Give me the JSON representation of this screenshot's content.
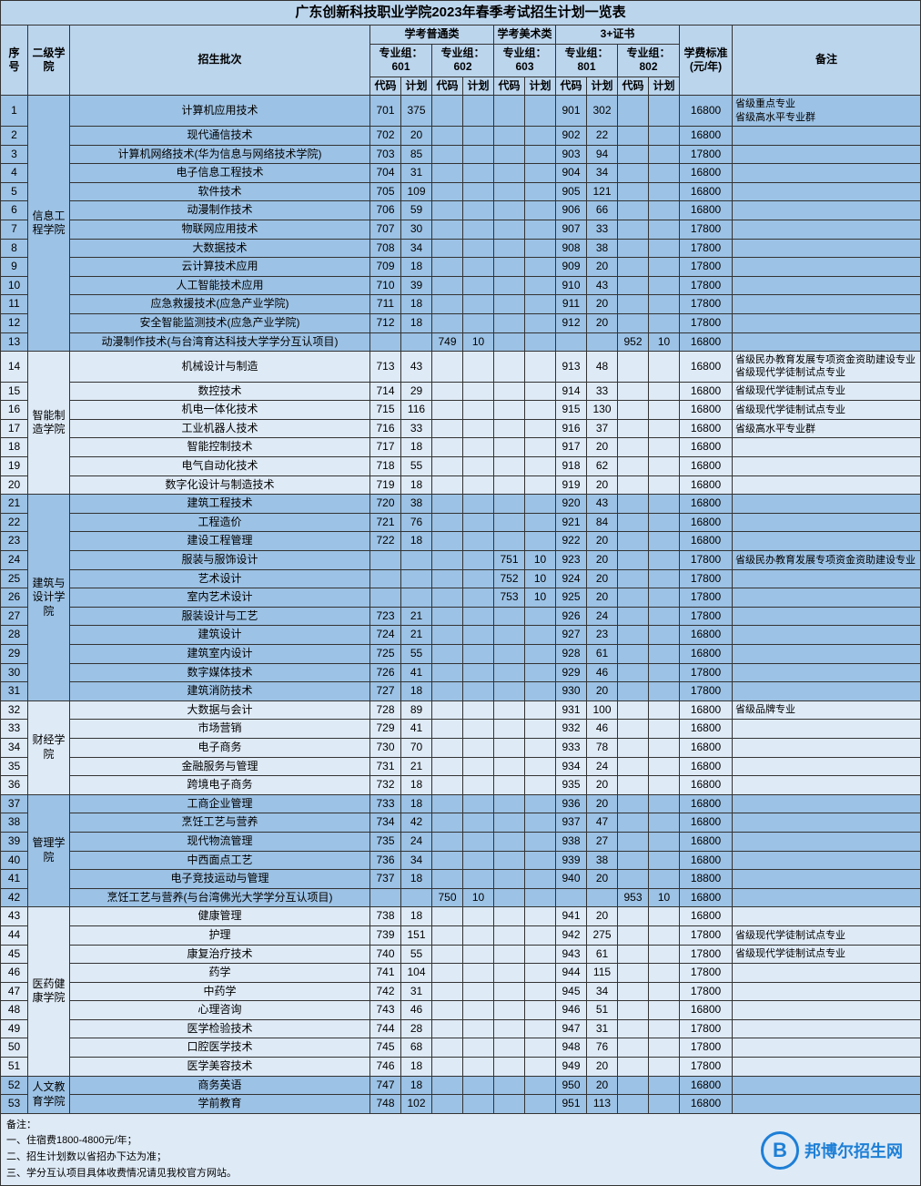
{
  "title": "广东创新科技职业学院2023年春季考试招生计划一览表",
  "colors": {
    "header_bg": "#bbd5ed",
    "dark_bg": "#9cc2e5",
    "light_bg": "#deeaf6",
    "border": "#333333",
    "logo": "#1e7fd6"
  },
  "header": {
    "seq": "序号",
    "college": "二级学院",
    "major": "招生批次",
    "cat_normal": "学考普通类",
    "cat_art": "学考美术类",
    "cat_3cert": "3+证书",
    "grp601": "专业组：601",
    "grp602": "专业组：602",
    "grp603": "专业组：603",
    "grp801": "专业组：801",
    "grp802": "专业组：802",
    "code": "代码",
    "plan": "计划",
    "fee": "学费标准(元/年)",
    "remark": "备注"
  },
  "colleges": [
    {
      "name": "信息工程学院",
      "shade": "dark",
      "rows": [
        {
          "n": 1,
          "major": "计算机应用技术",
          "c601": "701",
          "p601": "375",
          "c801": "901",
          "p801": "302",
          "fee": "16800",
          "remark": "省级重点专业\n省级高水平专业群"
        },
        {
          "n": 2,
          "major": "现代通信技术",
          "c601": "702",
          "p601": "20",
          "c801": "902",
          "p801": "22",
          "fee": "16800"
        },
        {
          "n": 3,
          "major": "计算机网络技术(华为信息与网络技术学院)",
          "c601": "703",
          "p601": "85",
          "c801": "903",
          "p801": "94",
          "fee": "17800"
        },
        {
          "n": 4,
          "major": "电子信息工程技术",
          "c601": "704",
          "p601": "31",
          "c801": "904",
          "p801": "34",
          "fee": "16800"
        },
        {
          "n": 5,
          "major": "软件技术",
          "c601": "705",
          "p601": "109",
          "c801": "905",
          "p801": "121",
          "fee": "16800"
        },
        {
          "n": 6,
          "major": "动漫制作技术",
          "c601": "706",
          "p601": "59",
          "c801": "906",
          "p801": "66",
          "fee": "16800"
        },
        {
          "n": 7,
          "major": "物联网应用技术",
          "c601": "707",
          "p601": "30",
          "c801": "907",
          "p801": "33",
          "fee": "17800"
        },
        {
          "n": 8,
          "major": "大数据技术",
          "c601": "708",
          "p601": "34",
          "c801": "908",
          "p801": "38",
          "fee": "17800"
        },
        {
          "n": 9,
          "major": "云计算技术应用",
          "c601": "709",
          "p601": "18",
          "c801": "909",
          "p801": "20",
          "fee": "17800"
        },
        {
          "n": 10,
          "major": "人工智能技术应用",
          "c601": "710",
          "p601": "39",
          "c801": "910",
          "p801": "43",
          "fee": "17800"
        },
        {
          "n": 11,
          "major": "应急救援技术(应急产业学院)",
          "c601": "711",
          "p601": "18",
          "c801": "911",
          "p801": "20",
          "fee": "17800"
        },
        {
          "n": 12,
          "major": "安全智能监测技术(应急产业学院)",
          "c601": "712",
          "p601": "18",
          "c801": "912",
          "p801": "20",
          "fee": "17800"
        },
        {
          "n": 13,
          "major": "动漫制作技术(与台湾育达科技大学学分互认项目)",
          "c602": "749",
          "p602": "10",
          "c802": "952",
          "p802": "10",
          "fee": "16800"
        }
      ]
    },
    {
      "name": "智能制造学院",
      "shade": "light",
      "rows": [
        {
          "n": 14,
          "major": "机械设计与制造",
          "c601": "713",
          "p601": "43",
          "c801": "913",
          "p801": "48",
          "fee": "16800",
          "remark": "省级民办教育发展专项资金资助建设专业\n省级现代学徒制试点专业"
        },
        {
          "n": 15,
          "major": "数控技术",
          "c601": "714",
          "p601": "29",
          "c801": "914",
          "p801": "33",
          "fee": "16800",
          "remark": "省级现代学徒制试点专业"
        },
        {
          "n": 16,
          "major": "机电一体化技术",
          "c601": "715",
          "p601": "116",
          "c801": "915",
          "p801": "130",
          "fee": "16800",
          "remark": "省级现代学徒制试点专业"
        },
        {
          "n": 17,
          "major": "工业机器人技术",
          "c601": "716",
          "p601": "33",
          "c801": "916",
          "p801": "37",
          "fee": "16800",
          "remark": "省级高水平专业群"
        },
        {
          "n": 18,
          "major": "智能控制技术",
          "c601": "717",
          "p601": "18",
          "c801": "917",
          "p801": "20",
          "fee": "16800"
        },
        {
          "n": 19,
          "major": "电气自动化技术",
          "c601": "718",
          "p601": "55",
          "c801": "918",
          "p801": "62",
          "fee": "16800"
        },
        {
          "n": 20,
          "major": "数字化设计与制造技术",
          "c601": "719",
          "p601": "18",
          "c801": "919",
          "p801": "20",
          "fee": "16800"
        }
      ]
    },
    {
      "name": "建筑与设计学院",
      "shade": "dark",
      "rows": [
        {
          "n": 21,
          "major": "建筑工程技术",
          "c601": "720",
          "p601": "38",
          "c801": "920",
          "p801": "43",
          "fee": "16800"
        },
        {
          "n": 22,
          "major": "工程造价",
          "c601": "721",
          "p601": "76",
          "c801": "921",
          "p801": "84",
          "fee": "16800"
        },
        {
          "n": 23,
          "major": "建设工程管理",
          "c601": "722",
          "p601": "18",
          "c801": "922",
          "p801": "20",
          "fee": "16800"
        },
        {
          "n": 24,
          "major": "服装与服饰设计",
          "c603": "751",
          "p603": "10",
          "c801": "923",
          "p801": "20",
          "fee": "17800",
          "remark": "省级民办教育发展专项资金资助建设专业"
        },
        {
          "n": 25,
          "major": "艺术设计",
          "c603": "752",
          "p603": "10",
          "c801": "924",
          "p801": "20",
          "fee": "17800"
        },
        {
          "n": 26,
          "major": "室内艺术设计",
          "c603": "753",
          "p603": "10",
          "c801": "925",
          "p801": "20",
          "fee": "17800"
        },
        {
          "n": 27,
          "major": "服装设计与工艺",
          "c601": "723",
          "p601": "21",
          "c801": "926",
          "p801": "24",
          "fee": "17800"
        },
        {
          "n": 28,
          "major": "建筑设计",
          "c601": "724",
          "p601": "21",
          "c801": "927",
          "p801": "23",
          "fee": "16800"
        },
        {
          "n": 29,
          "major": "建筑室内设计",
          "c601": "725",
          "p601": "55",
          "c801": "928",
          "p801": "61",
          "fee": "16800"
        },
        {
          "n": 30,
          "major": "数字媒体技术",
          "c601": "726",
          "p601": "41",
          "c801": "929",
          "p801": "46",
          "fee": "17800"
        },
        {
          "n": 31,
          "major": "建筑消防技术",
          "c601": "727",
          "p601": "18",
          "c801": "930",
          "p801": "20",
          "fee": "17800"
        }
      ]
    },
    {
      "name": "财经学院",
      "shade": "light",
      "rows": [
        {
          "n": 32,
          "major": "大数据与会计",
          "c601": "728",
          "p601": "89",
          "c801": "931",
          "p801": "100",
          "fee": "16800",
          "remark": "省级品牌专业"
        },
        {
          "n": 33,
          "major": "市场营销",
          "c601": "729",
          "p601": "41",
          "c801": "932",
          "p801": "46",
          "fee": "16800"
        },
        {
          "n": 34,
          "major": "电子商务",
          "c601": "730",
          "p601": "70",
          "c801": "933",
          "p801": "78",
          "fee": "16800"
        },
        {
          "n": 35,
          "major": "金融服务与管理",
          "c601": "731",
          "p601": "21",
          "c801": "934",
          "p801": "24",
          "fee": "16800"
        },
        {
          "n": 36,
          "major": "跨境电子商务",
          "c601": "732",
          "p601": "18",
          "c801": "935",
          "p801": "20",
          "fee": "16800"
        }
      ]
    },
    {
      "name": "管理学院",
      "shade": "dark",
      "rows": [
        {
          "n": 37,
          "major": "工商企业管理",
          "c601": "733",
          "p601": "18",
          "c801": "936",
          "p801": "20",
          "fee": "16800"
        },
        {
          "n": 38,
          "major": "烹饪工艺与营养",
          "c601": "734",
          "p601": "42",
          "c801": "937",
          "p801": "47",
          "fee": "16800"
        },
        {
          "n": 39,
          "major": "现代物流管理",
          "c601": "735",
          "p601": "24",
          "c801": "938",
          "p801": "27",
          "fee": "16800"
        },
        {
          "n": 40,
          "major": "中西面点工艺",
          "c601": "736",
          "p601": "34",
          "c801": "939",
          "p801": "38",
          "fee": "16800"
        },
        {
          "n": 41,
          "major": "电子竞技运动与管理",
          "c601": "737",
          "p601": "18",
          "c801": "940",
          "p801": "20",
          "fee": "18800"
        },
        {
          "n": 42,
          "major": "烹饪工艺与营养(与台湾佛光大学学分互认项目)",
          "c602": "750",
          "p602": "10",
          "c802": "953",
          "p802": "10",
          "fee": "16800"
        }
      ]
    },
    {
      "name": "医药健康学院",
      "shade": "light",
      "rows": [
        {
          "n": 43,
          "major": "健康管理",
          "c601": "738",
          "p601": "18",
          "c801": "941",
          "p801": "20",
          "fee": "16800"
        },
        {
          "n": 44,
          "major": "护理",
          "c601": "739",
          "p601": "151",
          "c801": "942",
          "p801": "275",
          "fee": "17800",
          "remark": "省级现代学徒制试点专业"
        },
        {
          "n": 45,
          "major": "康复治疗技术",
          "c601": "740",
          "p601": "55",
          "c801": "943",
          "p801": "61",
          "fee": "17800",
          "remark": "省级现代学徒制试点专业"
        },
        {
          "n": 46,
          "major": "药学",
          "c601": "741",
          "p601": "104",
          "c801": "944",
          "p801": "115",
          "fee": "17800"
        },
        {
          "n": 47,
          "major": "中药学",
          "c601": "742",
          "p601": "31",
          "c801": "945",
          "p801": "34",
          "fee": "17800"
        },
        {
          "n": 48,
          "major": "心理咨询",
          "c601": "743",
          "p601": "46",
          "c801": "946",
          "p801": "51",
          "fee": "16800"
        },
        {
          "n": 49,
          "major": "医学检验技术",
          "c601": "744",
          "p601": "28",
          "c801": "947",
          "p801": "31",
          "fee": "17800"
        },
        {
          "n": 50,
          "major": "口腔医学技术",
          "c601": "745",
          "p601": "68",
          "c801": "948",
          "p801": "76",
          "fee": "17800"
        },
        {
          "n": 51,
          "major": "医学美容技术",
          "c601": "746",
          "p601": "18",
          "c801": "949",
          "p801": "20",
          "fee": "17800"
        }
      ]
    },
    {
      "name": "人文教育学院",
      "shade": "dark",
      "rows": [
        {
          "n": 52,
          "major": "商务英语",
          "c601": "747",
          "p601": "18",
          "c801": "950",
          "p801": "20",
          "fee": "16800"
        },
        {
          "n": 53,
          "major": "学前教育",
          "c601": "748",
          "p601": "102",
          "c801": "951",
          "p801": "113",
          "fee": "16800"
        }
      ]
    }
  ],
  "notes": {
    "label": "备注：",
    "l1": "一、住宿费1800-4800元/年；",
    "l2": "二、招生计划数以省招办下达为准；",
    "l3": "三、学分互认项目具体收费情况请见我校官方网站。"
  },
  "logo": {
    "b": "B",
    "text": "邦博尔招生网"
  }
}
